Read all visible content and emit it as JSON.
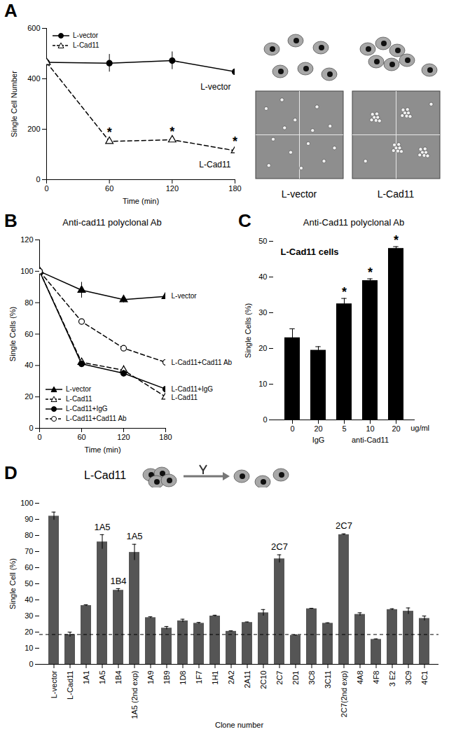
{
  "chart_data": [
    {
      "panel": "A",
      "type": "line",
      "x_label": "Time (min)",
      "y_label": "Single Cell Number",
      "x": [
        0,
        60,
        120,
        180
      ],
      "xlim": [
        0,
        180
      ],
      "xticks": [
        0,
        60,
        120,
        180
      ],
      "ylim": [
        0,
        600
      ],
      "yticks": [
        0,
        200,
        400,
        600
      ],
      "legend": "top-left",
      "series": [
        {
          "name": "L-vector",
          "color": "#000000",
          "marker": "filled-circle",
          "line_style": "solid",
          "values": [
            465,
            462,
            472,
            428
          ],
          "errors": [
            15,
            35,
            35,
            15
          ]
        },
        {
          "name": "L-Cad11",
          "color": "#000000",
          "marker": "open-triangle",
          "line_style": "dashed",
          "values": [
            465,
            152,
            158,
            115
          ],
          "errors": [
            15,
            10,
            8,
            10
          ],
          "significant": [
            false,
            true,
            true,
            true
          ]
        }
      ],
      "significance_label": "*",
      "image_labels": [
        "L-vector",
        "L-Cad11"
      ]
    },
    {
      "panel": "B",
      "type": "line",
      "title": "Anti-cad11 polyclonal Ab",
      "x_label": "Time (min)",
      "y_label": "Single Cells (%)",
      "x": [
        0,
        60,
        120,
        180
      ],
      "xlim": [
        0,
        180
      ],
      "xticks": [
        0,
        60,
        120,
        180
      ],
      "ylim": [
        0,
        120
      ],
      "yticks": [
        0,
        20,
        40,
        60,
        80,
        100,
        120
      ],
      "legend": "bottom-left",
      "series": [
        {
          "name": "L-vector",
          "color": "#000000",
          "marker": "filled-triangle",
          "line_style": "solid",
          "values": [
            100,
            88,
            82,
            84
          ],
          "errors": [
            0,
            5,
            2,
            3
          ]
        },
        {
          "name": "L-Cad11",
          "color": "#000000",
          "marker": "open-triangle",
          "line_style": "dashed",
          "values": [
            100,
            42,
            37,
            20
          ],
          "errors": [
            0,
            2,
            3,
            2
          ]
        },
        {
          "name": "L-Cad11+IgG",
          "color": "#000000",
          "marker": "filled-circle",
          "line_style": "solid",
          "values": [
            100,
            41,
            35,
            25
          ],
          "errors": [
            0,
            2,
            2,
            1
          ]
        },
        {
          "name": "L-Cad11+Cad11 Ab",
          "color": "#000000",
          "marker": "open-circle",
          "line_style": "dashed",
          "values": [
            100,
            68,
            51,
            42
          ],
          "errors": [
            0,
            1,
            1,
            3
          ]
        }
      ]
    },
    {
      "panel": "C",
      "type": "bar",
      "title": "Anti-Cad11 polyclonal Ab",
      "annotation": "L-Cad11 cells",
      "y_label": "Single Cells (%)",
      "categories": [
        "0",
        "20",
        "5",
        "10",
        "20"
      ],
      "values": [
        23,
        19.5,
        32.5,
        39,
        48
      ],
      "errors": [
        2.5,
        1,
        1.5,
        0.5,
        0.5
      ],
      "significant": [
        false,
        false,
        true,
        true,
        true
      ],
      "significance_label": "*",
      "x_groups": [
        {
          "label": "IgG",
          "from": 1,
          "to": 1
        },
        {
          "label": "anti-Cad11",
          "from": 2,
          "to": 4
        }
      ],
      "x_unit": "ug/ml",
      "color": "#000000",
      "ylim": [
        0,
        50
      ],
      "yticks": [
        0,
        10,
        20,
        30,
        40,
        50
      ]
    },
    {
      "panel": "D",
      "type": "bar",
      "title": "L-Cad11",
      "x_label": "Clone number",
      "y_label": "Single Cell (%)",
      "categories": [
        "L-vector",
        "L-Cad11",
        "1A1",
        "1A5",
        "1B4",
        "1A5 (2nd exp)",
        "1A9",
        "1B9",
        "1D8",
        "1F7",
        "1H1",
        "2A2",
        "2A11",
        "2C10",
        "2C7",
        "2D1",
        "3C8",
        "3C11",
        "2C7(2nd exp)",
        "4A8",
        "4F8",
        "3 E2",
        "3C9",
        "4C1"
      ],
      "values": [
        92,
        18.5,
        36.5,
        76,
        46,
        69.5,
        29,
        22.5,
        27,
        25.5,
        30,
        20.5,
        26,
        32,
        65.5,
        18,
        34.5,
        25.5,
        80.5,
        31,
        15.5,
        34,
        33,
        28.5
      ],
      "errors": [
        2.5,
        1.5,
        0.5,
        4.5,
        1,
        5,
        0.5,
        1,
        1,
        0.5,
        0.5,
        0.3,
        0.3,
        2,
        2.5,
        0.3,
        0.3,
        0.3,
        0.5,
        1,
        0.3,
        0.5,
        2,
        1.5
      ],
      "reference_line": 18.5,
      "annotations": [
        {
          "text": "1A5",
          "category": "1A5"
        },
        {
          "text": "1B4",
          "category": "1B4"
        },
        {
          "text": "1A5",
          "category": "1A5 (2nd exp)"
        },
        {
          "text": "2C7",
          "category": "2C7"
        },
        {
          "text": "2C7",
          "category": "2C7(2nd exp)"
        }
      ],
      "color": "#555555",
      "ylim": [
        0,
        100
      ],
      "yticks": [
        0,
        10,
        20,
        30,
        40,
        50,
        60,
        70,
        80,
        90,
        100
      ]
    }
  ]
}
